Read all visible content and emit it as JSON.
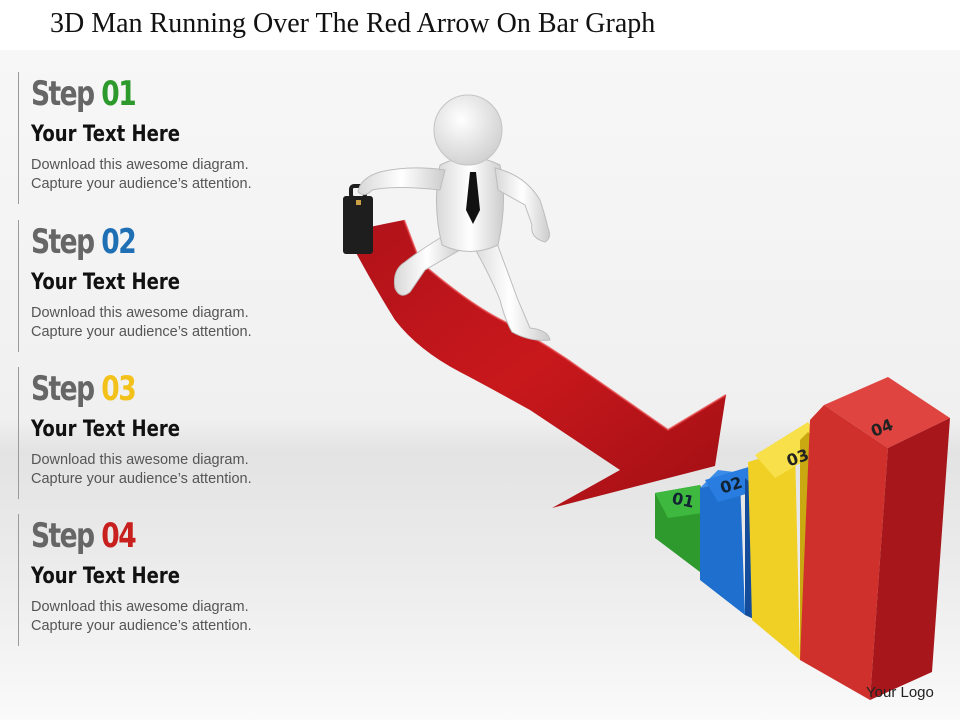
{
  "title": "3D Man Running Over The Red Arrow On Bar Graph",
  "steps": [
    {
      "label": "Step",
      "number": "01",
      "number_color": "#2e9a2e",
      "subtitle": "Your Text Here",
      "line1": "Download this awesome diagram.",
      "line2": "Capture your audience’s attention."
    },
    {
      "label": "Step",
      "number": "02",
      "number_color": "#1f6fb5",
      "subtitle": "Your Text Here",
      "line1": "Download this awesome diagram.",
      "line2": "Capture your audience’s attention."
    },
    {
      "label": "Step",
      "number": "03",
      "number_color": "#f2c21a",
      "subtitle": "Your Text Here",
      "line1": "Download this awesome diagram.",
      "line2": "Capture your audience’s attention."
    },
    {
      "label": "Step",
      "number": "04",
      "number_color": "#c8201e",
      "subtitle": "Your Text Here",
      "line1": "Download this awesome diagram.",
      "line2": "Capture your audience’s attention."
    }
  ],
  "bars": [
    {
      "label": "01",
      "color": "#2e9a2e"
    },
    {
      "label": "02",
      "color": "#1f6fcf"
    },
    {
      "label": "03",
      "color": "#f0d024"
    },
    {
      "label": "04",
      "color": "#d0302c"
    }
  ],
  "arrow_color": "#c0151a",
  "logo": "Your Logo"
}
